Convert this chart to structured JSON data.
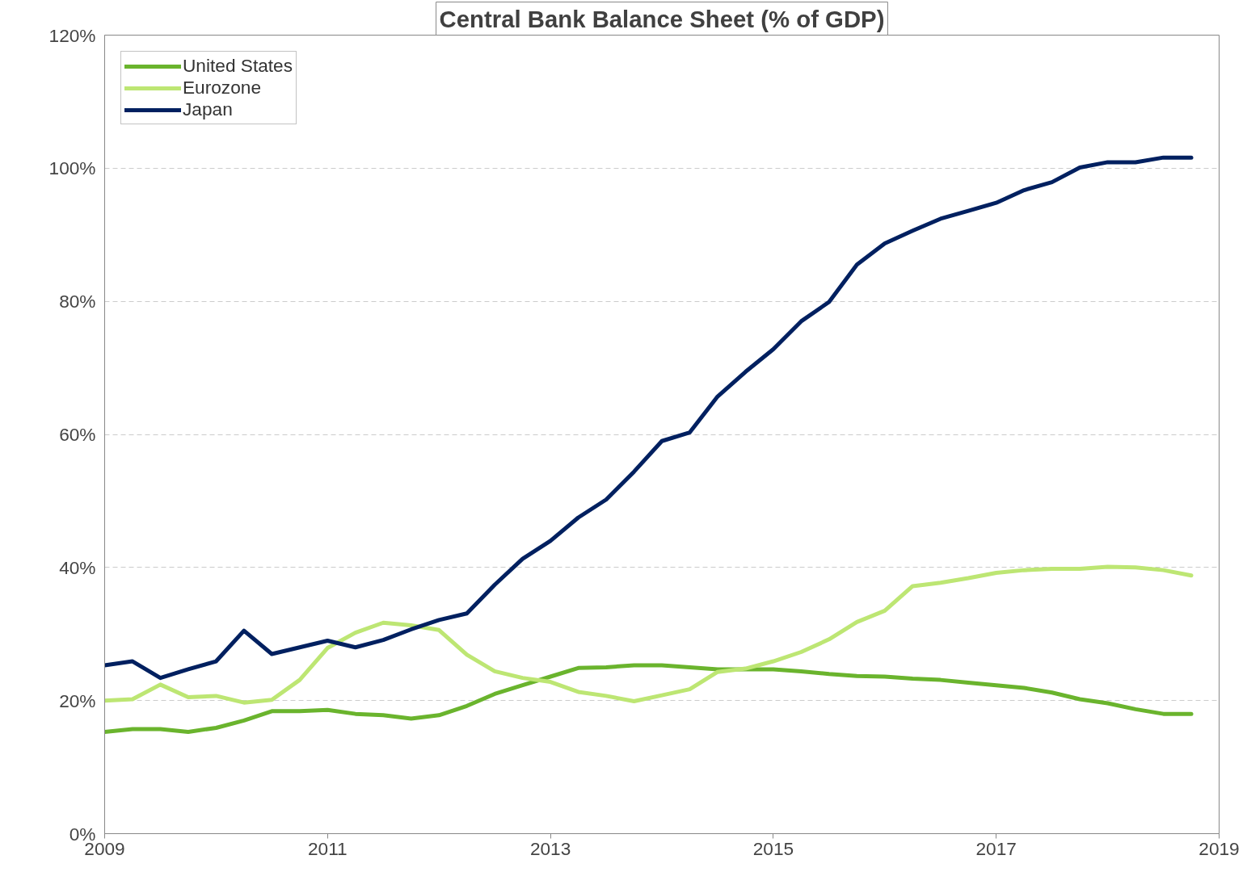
{
  "chart_data": {
    "type": "line",
    "title": "Central Bank Balance Sheet (% of GDP)",
    "x": [
      2009.0,
      2009.25,
      2009.5,
      2009.75,
      2010.0,
      2010.25,
      2010.5,
      2010.75,
      2011.0,
      2011.25,
      2011.5,
      2011.75,
      2012.0,
      2012.25,
      2012.5,
      2012.75,
      2013.0,
      2013.25,
      2013.5,
      2013.75,
      2014.0,
      2014.25,
      2014.5,
      2014.75,
      2015.0,
      2015.25,
      2015.5,
      2015.75,
      2016.0,
      2016.25,
      2016.5,
      2016.75,
      2017.0,
      2017.25,
      2017.5,
      2017.75,
      2018.0,
      2018.25,
      2018.5,
      2018.75
    ],
    "series": [
      {
        "name": "United States",
        "color": "#6ab42d",
        "values": [
          15.3,
          15.7,
          15.7,
          15.3,
          15.9,
          17.0,
          18.4,
          18.4,
          18.6,
          18.0,
          17.8,
          17.3,
          17.8,
          19.2,
          21.0,
          22.3,
          23.6,
          24.9,
          25.0,
          25.3,
          25.3,
          25.0,
          24.7,
          24.7,
          24.7,
          24.4,
          24.0,
          23.7,
          23.6,
          23.3,
          23.1,
          22.7,
          22.3,
          21.9,
          21.2,
          20.2,
          19.6,
          18.7,
          18.0,
          18.0
        ]
      },
      {
        "name": "Eurozone",
        "color": "#bde673",
        "values": [
          20.0,
          20.2,
          22.4,
          20.5,
          20.7,
          19.7,
          20.1,
          23.1,
          27.9,
          30.2,
          31.7,
          31.3,
          30.6,
          26.9,
          24.4,
          23.4,
          22.8,
          21.3,
          20.7,
          19.9,
          20.8,
          21.7,
          24.3,
          24.8,
          25.9,
          27.3,
          29.2,
          31.8,
          33.5,
          37.2,
          37.7,
          38.4,
          39.2,
          39.6,
          39.8,
          39.8,
          40.1,
          40.0,
          39.6,
          38.8
        ]
      },
      {
        "name": "Japan",
        "color": "#002060",
        "values": [
          25.3,
          25.9,
          23.4,
          24.7,
          25.9,
          30.5,
          27.0,
          28.0,
          29.0,
          28.0,
          29.1,
          30.7,
          32.1,
          33.1,
          37.4,
          41.3,
          44.0,
          47.5,
          50.2,
          54.4,
          59.0,
          60.3,
          65.7,
          69.4,
          72.8,
          77.0,
          79.9,
          85.5,
          88.7,
          90.6,
          92.4,
          93.6,
          94.8,
          96.7,
          97.9,
          100.1,
          100.9,
          100.9,
          101.6,
          101.6
        ]
      }
    ],
    "xlim": [
      2009,
      2019
    ],
    "xticks": [
      2009,
      2011,
      2013,
      2015,
      2017,
      2019
    ],
    "ylim": [
      0,
      120
    ],
    "yticks": [
      {
        "value": 0,
        "label": "0%"
      },
      {
        "value": 20,
        "label": "20%"
      },
      {
        "value": 40,
        "label": "40%"
      },
      {
        "value": 60,
        "label": "60%"
      },
      {
        "value": 80,
        "label": "80%"
      },
      {
        "value": 100,
        "label": "100%"
      },
      {
        "value": 120,
        "label": "120%"
      }
    ],
    "grid": "y",
    "legend": "top left",
    "marker": "none",
    "line_style": "solid"
  }
}
